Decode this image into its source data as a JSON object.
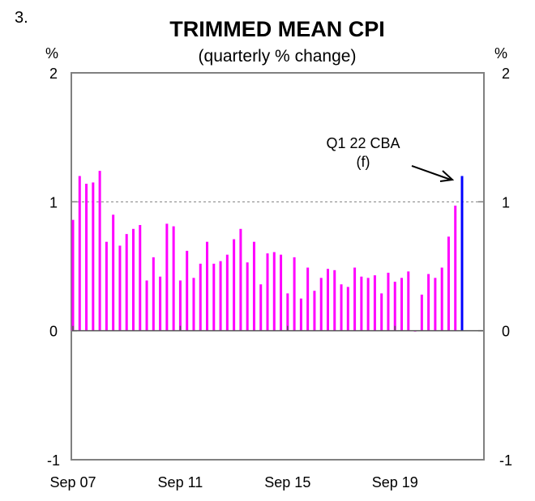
{
  "figure_number": "3.",
  "chart_data": {
    "type": "bar",
    "title": "TRIMMED MEAN CPI",
    "subtitle": "(quarterly % change)",
    "ylabel_left": "%",
    "ylabel_right": "%",
    "ylim": [
      -1,
      2
    ],
    "yticks": [
      "2",
      "1",
      "0",
      "-1"
    ],
    "ytick_values": [
      2,
      1,
      0,
      -1
    ],
    "reference_line": 1,
    "grid": false,
    "xticks": [
      {
        "label": "Sep 07",
        "index": 0
      },
      {
        "label": "Sep 11",
        "index": 16
      },
      {
        "label": "Sep 15",
        "index": 32
      },
      {
        "label": "Sep 19",
        "index": 48
      }
    ],
    "categories": [
      "Sep 07",
      "Dec 07",
      "Mar 08",
      "Jun 08",
      "Sep 08",
      "Dec 08",
      "Mar 09",
      "Jun 09",
      "Sep 09",
      "Dec 09",
      "Mar 10",
      "Jun 10",
      "Sep 10",
      "Dec 10",
      "Mar 11",
      "Jun 11",
      "Sep 11",
      "Dec 11",
      "Mar 12",
      "Jun 12",
      "Sep 12",
      "Dec 12",
      "Mar 13",
      "Jun 13",
      "Sep 13",
      "Dec 13",
      "Mar 14",
      "Jun 14",
      "Sep 14",
      "Dec 14",
      "Mar 15",
      "Jun 15",
      "Sep 15",
      "Dec 15",
      "Mar 16",
      "Jun 16",
      "Sep 16",
      "Dec 16",
      "Mar 17",
      "Jun 17",
      "Sep 17",
      "Dec 17",
      "Mar 18",
      "Jun 18",
      "Sep 18",
      "Dec 18",
      "Mar 19",
      "Jun 19",
      "Sep 19",
      "Dec 19",
      "Mar 20",
      "Jun 20",
      "Sep 20",
      "Dec 20",
      "Mar 21",
      "Jun 21",
      "Sep 21",
      "Dec 21",
      "Mar 22"
    ],
    "series": [
      {
        "values": [
          0.86,
          1.2,
          1.14,
          1.15,
          1.24,
          0.69,
          0.9,
          0.66,
          0.75,
          0.79,
          0.82,
          0.39,
          0.57,
          0.42,
          0.83,
          0.81,
          0.39,
          0.62,
          0.41,
          0.52,
          0.69,
          0.52,
          0.54,
          0.59,
          0.71,
          0.79,
          0.53,
          0.69,
          0.36,
          0.6,
          0.61,
          0.59,
          0.29,
          0.57,
          0.25,
          0.49,
          0.31,
          0.41,
          0.48,
          0.47,
          0.36,
          0.34,
          0.49,
          0.42,
          0.41,
          0.43,
          0.29,
          0.45,
          0.38,
          0.41,
          0.46,
          0.0,
          0.28,
          0.44,
          0.41,
          0.49,
          0.73,
          0.97,
          null
        ],
        "color": "#ff00ff"
      },
      {
        "values": [
          null,
          null,
          null,
          null,
          null,
          null,
          null,
          null,
          null,
          null,
          null,
          null,
          null,
          null,
          null,
          null,
          null,
          null,
          null,
          null,
          null,
          null,
          null,
          null,
          null,
          null,
          null,
          null,
          null,
          null,
          null,
          null,
          null,
          null,
          null,
          null,
          null,
          null,
          null,
          null,
          null,
          null,
          null,
          null,
          null,
          null,
          null,
          null,
          null,
          null,
          null,
          null,
          null,
          null,
          null,
          null,
          null,
          null,
          1.2
        ],
        "color": "#0000ff"
      }
    ],
    "annotation": {
      "line1": "Q1 22 CBA",
      "line2": "(f)"
    }
  }
}
